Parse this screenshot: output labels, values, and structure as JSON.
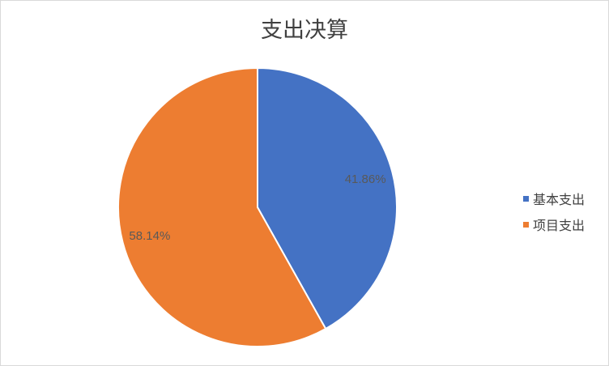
{
  "chart_data": {
    "type": "pie",
    "title": "支出决算",
    "categories": [
      "基本支出",
      "项目支出"
    ],
    "values": [
      41.86,
      58.14
    ],
    "data_labels": [
      "41.86%",
      "58.14%"
    ],
    "colors": [
      "#4472c4",
      "#ed7d31"
    ],
    "legend_position": "right",
    "label_color": "#595959"
  }
}
